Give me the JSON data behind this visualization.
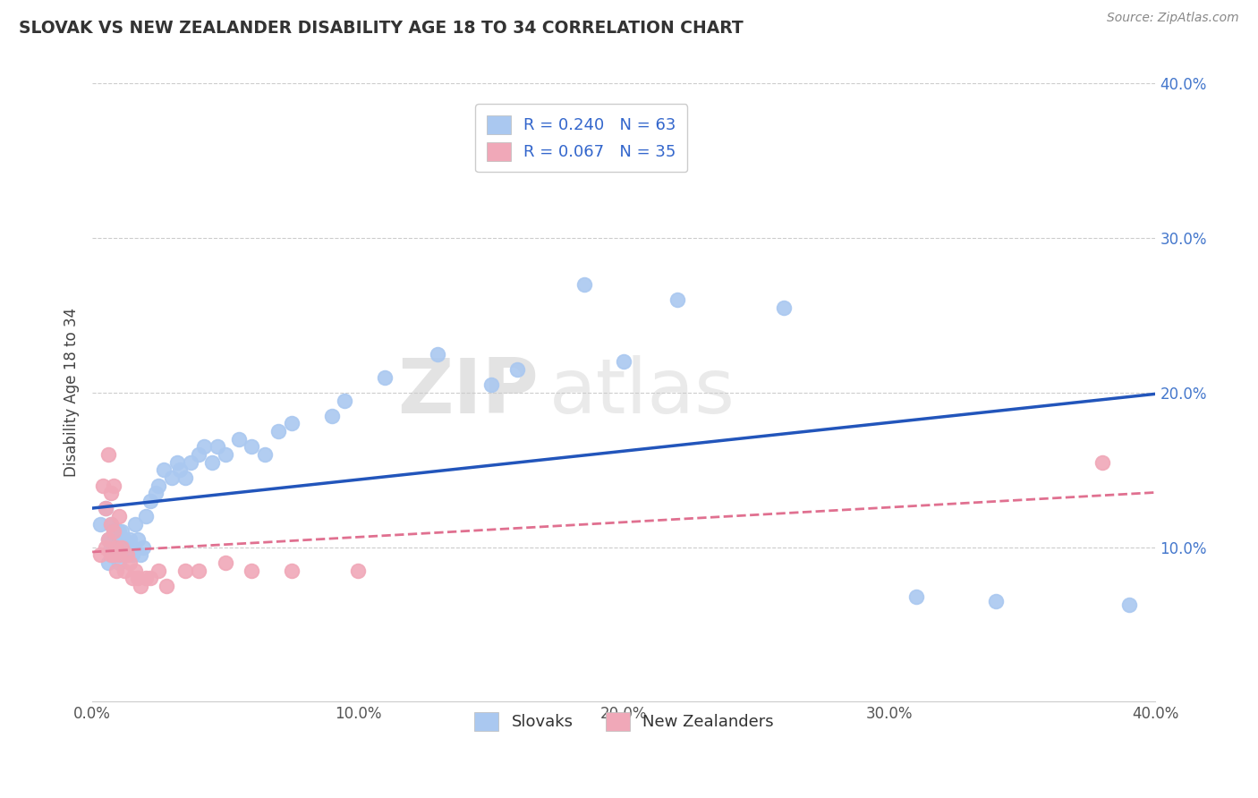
{
  "title": "SLOVAK VS NEW ZEALANDER DISABILITY AGE 18 TO 34 CORRELATION CHART",
  "source": "Source: ZipAtlas.com",
  "ylabel": "Disability Age 18 to 34",
  "xlim": [
    0.0,
    0.4
  ],
  "ylim": [
    0.0,
    0.4
  ],
  "xtick_vals": [
    0.0,
    0.1,
    0.2,
    0.3,
    0.4
  ],
  "ytick_vals": [
    0.1,
    0.2,
    0.3,
    0.4
  ],
  "slovak_R": "0.240",
  "slovak_N": "63",
  "nz_R": "0.067",
  "nz_N": "35",
  "slovak_color": "#aac8f0",
  "nz_color": "#f0a8b8",
  "slovak_line_color": "#2255bb",
  "nz_line_color": "#e07090",
  "background_color": "#ffffff",
  "grid_color": "#cccccc",
  "legend_label_slovak": "Slovaks",
  "legend_label_nz": "New Zealanders",
  "slovak_x": [
    0.003,
    0.005,
    0.006,
    0.006,
    0.007,
    0.007,
    0.007,
    0.008,
    0.008,
    0.008,
    0.009,
    0.009,
    0.009,
    0.01,
    0.01,
    0.01,
    0.01,
    0.011,
    0.011,
    0.012,
    0.012,
    0.013,
    0.013,
    0.014,
    0.015,
    0.015,
    0.016,
    0.017,
    0.018,
    0.019,
    0.02,
    0.022,
    0.024,
    0.025,
    0.027,
    0.03,
    0.032,
    0.033,
    0.035,
    0.037,
    0.04,
    0.042,
    0.045,
    0.047,
    0.05,
    0.055,
    0.06,
    0.065,
    0.07,
    0.075,
    0.09,
    0.095,
    0.11,
    0.13,
    0.15,
    0.16,
    0.185,
    0.2,
    0.22,
    0.26,
    0.31,
    0.34,
    0.39
  ],
  "slovak_y": [
    0.115,
    0.125,
    0.09,
    0.105,
    0.1,
    0.095,
    0.115,
    0.105,
    0.095,
    0.11,
    0.095,
    0.1,
    0.11,
    0.09,
    0.095,
    0.1,
    0.11,
    0.1,
    0.11,
    0.095,
    0.105,
    0.095,
    0.1,
    0.105,
    0.095,
    0.1,
    0.115,
    0.105,
    0.095,
    0.1,
    0.12,
    0.13,
    0.135,
    0.14,
    0.15,
    0.145,
    0.155,
    0.15,
    0.145,
    0.155,
    0.16,
    0.165,
    0.155,
    0.165,
    0.16,
    0.17,
    0.165,
    0.16,
    0.175,
    0.18,
    0.185,
    0.195,
    0.21,
    0.225,
    0.205,
    0.215,
    0.27,
    0.22,
    0.26,
    0.255,
    0.068,
    0.065,
    0.063
  ],
  "nz_x": [
    0.003,
    0.004,
    0.005,
    0.005,
    0.006,
    0.006,
    0.007,
    0.007,
    0.007,
    0.008,
    0.008,
    0.008,
    0.009,
    0.009,
    0.01,
    0.01,
    0.011,
    0.012,
    0.013,
    0.014,
    0.015,
    0.016,
    0.017,
    0.018,
    0.02,
    0.022,
    0.025,
    0.028,
    0.035,
    0.04,
    0.05,
    0.06,
    0.075,
    0.1,
    0.38
  ],
  "nz_y": [
    0.095,
    0.14,
    0.125,
    0.1,
    0.16,
    0.105,
    0.135,
    0.115,
    0.095,
    0.14,
    0.11,
    0.095,
    0.1,
    0.085,
    0.12,
    0.095,
    0.1,
    0.085,
    0.095,
    0.09,
    0.08,
    0.085,
    0.08,
    0.075,
    0.08,
    0.08,
    0.085,
    0.075,
    0.085,
    0.085,
    0.09,
    0.085,
    0.085,
    0.085,
    0.155
  ]
}
